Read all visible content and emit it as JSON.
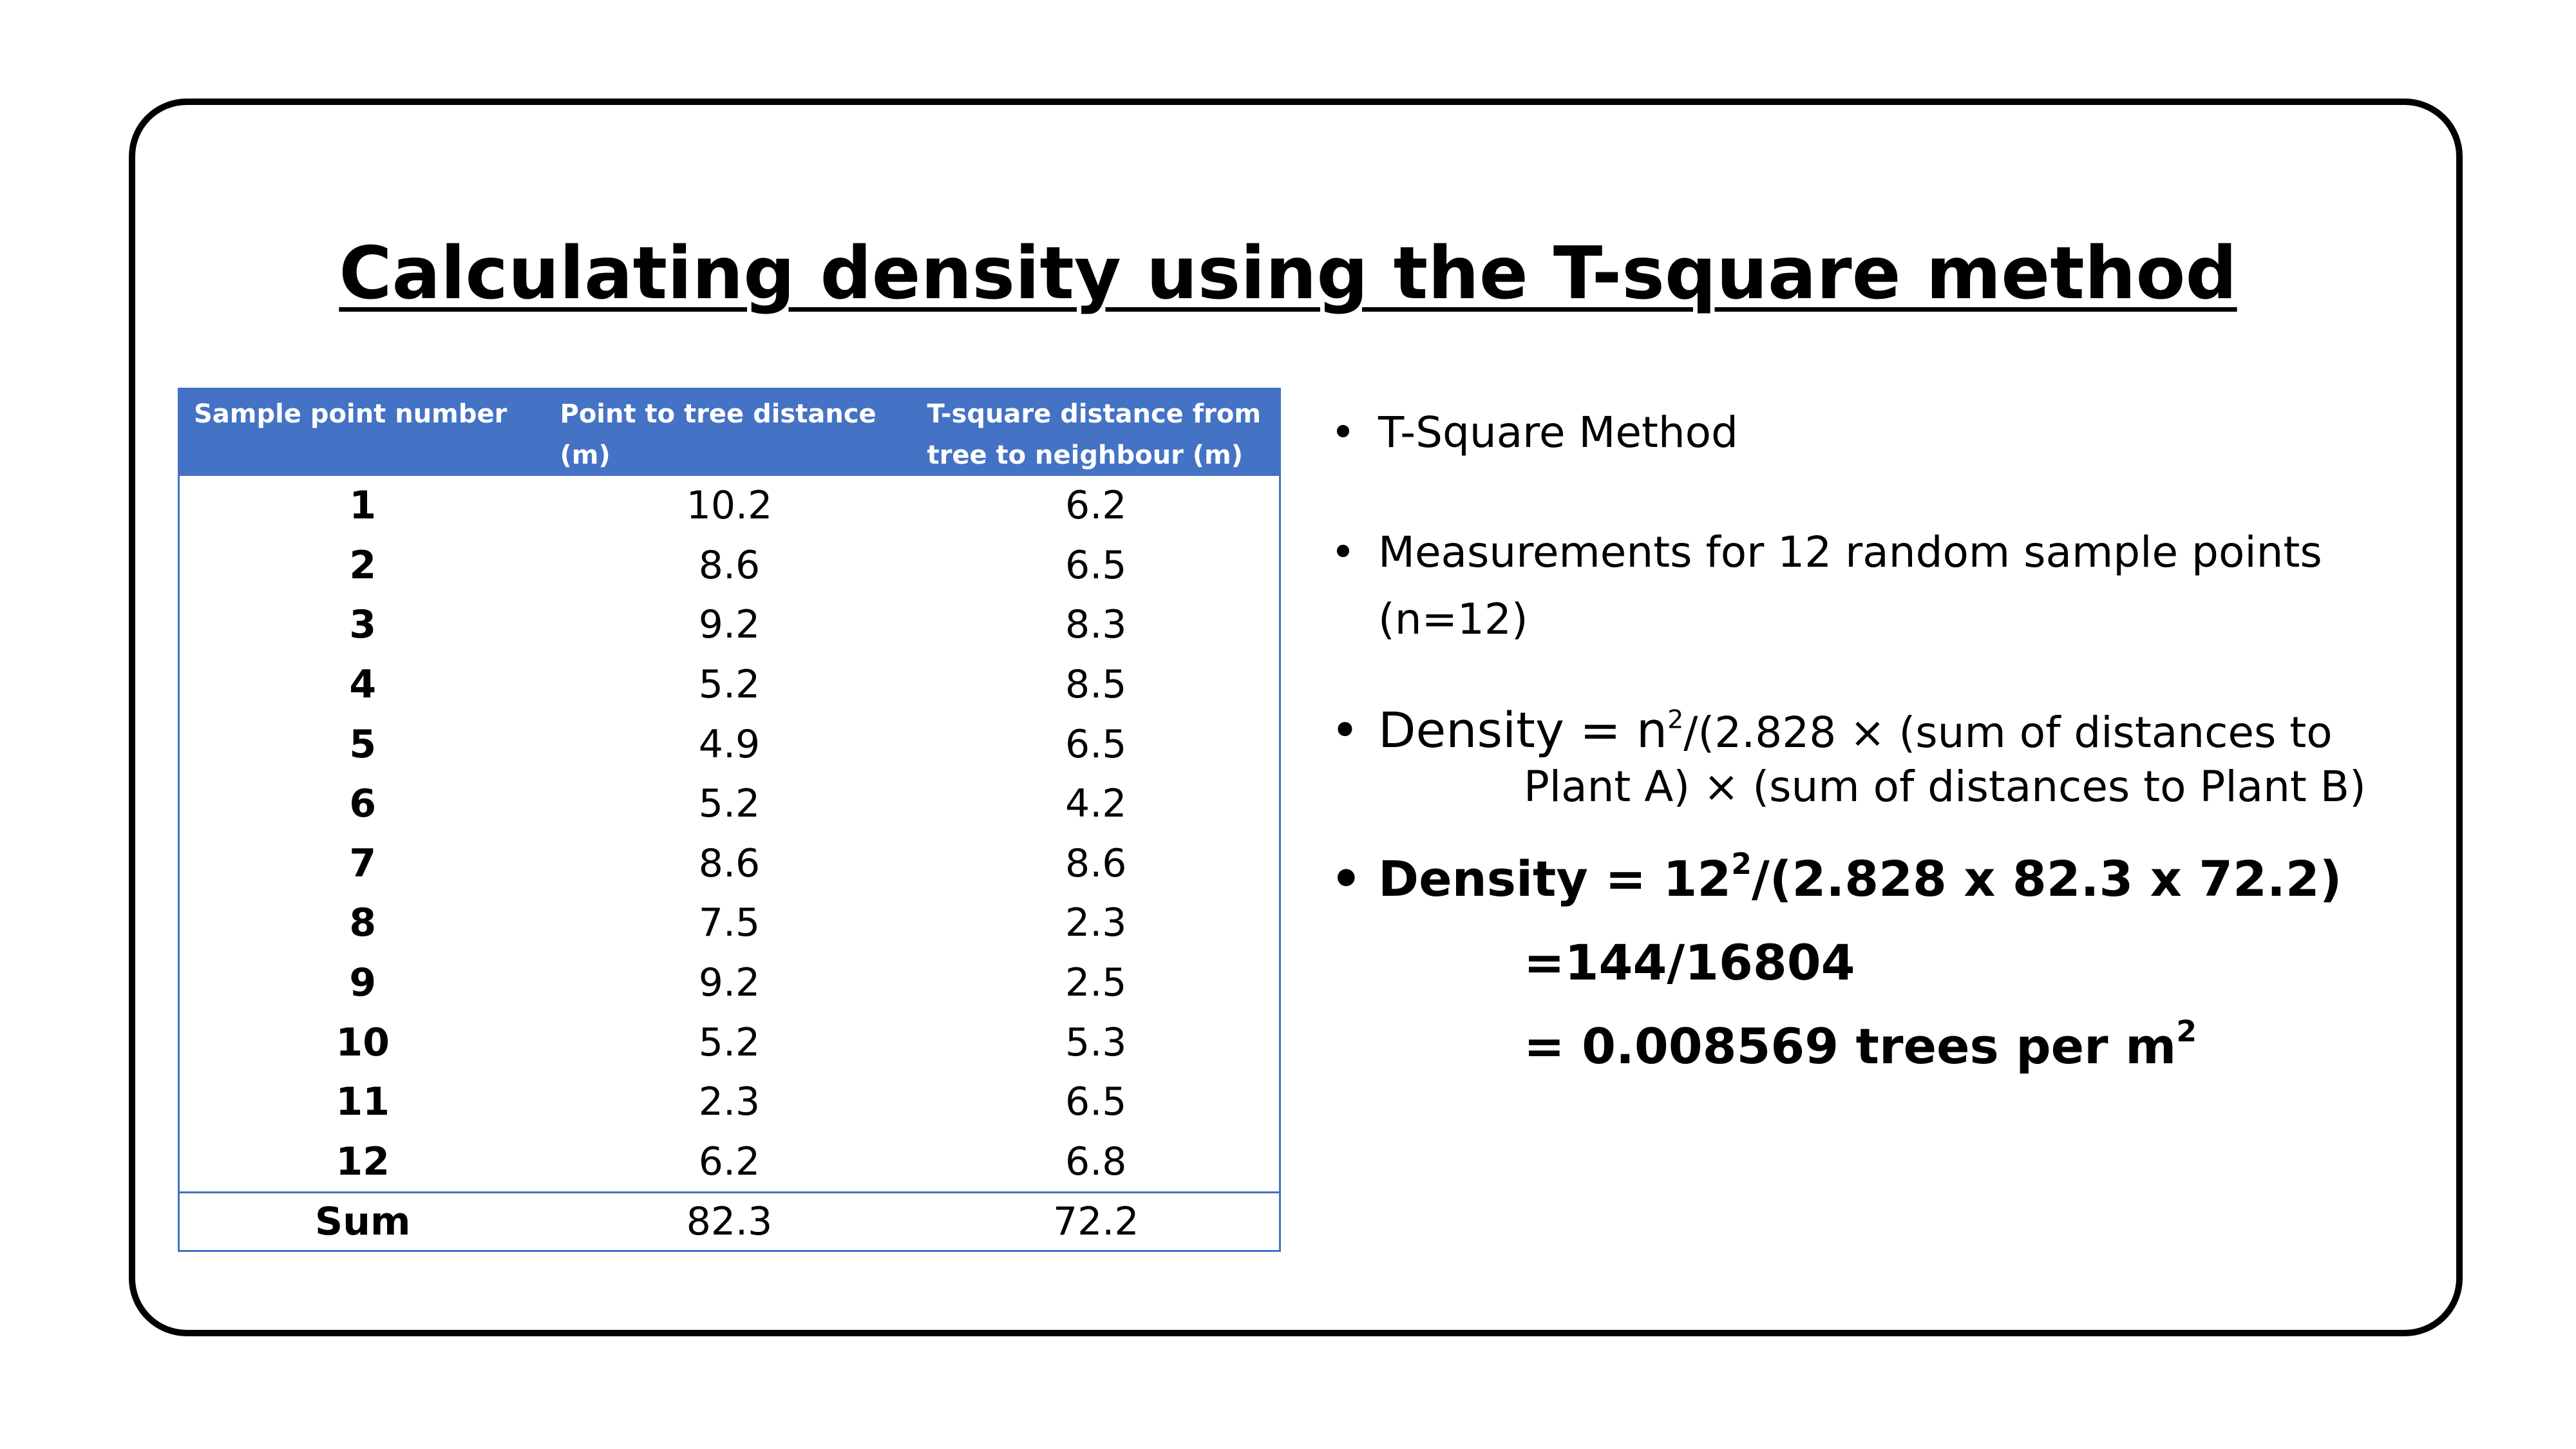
{
  "slide": {
    "title": "Calculating density using the T-square method"
  },
  "table": {
    "headers": [
      "Sample point number",
      "Point to tree distance (m)",
      "T-square distance from tree to neighbour (m)"
    ],
    "rows": [
      [
        "1",
        "10.2",
        "6.2"
      ],
      [
        "2",
        "8.6",
        "6.5"
      ],
      [
        "3",
        "9.2",
        "8.3"
      ],
      [
        "4",
        "5.2",
        "8.5"
      ],
      [
        "5",
        "4.9",
        "6.5"
      ],
      [
        "6",
        "5.2",
        "4.2"
      ],
      [
        "7",
        "8.6",
        "8.6"
      ],
      [
        "8",
        "7.5",
        "2.3"
      ],
      [
        "9",
        "9.2",
        "2.5"
      ],
      [
        "10",
        "5.2",
        "5.3"
      ],
      [
        "11",
        "2.3",
        "6.5"
      ],
      [
        "12",
        "6.2",
        "6.8"
      ]
    ],
    "sum": [
      "Sum",
      "82.3",
      "72.2"
    ]
  },
  "bullets": {
    "bullet_char": "•",
    "method": "T-Square Method",
    "measurements": "Measurements for 12 random sample points (n=12)",
    "formula": {
      "lead": "Density = n",
      "exp": "2",
      "rest": "/(2.828 ×  (sum of distances to",
      "continuation": "Plant A) × (sum of distances to Plant B)"
    },
    "calc": {
      "lead": "Density = 12",
      "exp": "2",
      "rest": "/(2.828 x 82.3 x 72.2)",
      "step2": "=144/16804",
      "step3_lead": "= 0.008569 trees per m",
      "step3_exp": "2"
    }
  }
}
